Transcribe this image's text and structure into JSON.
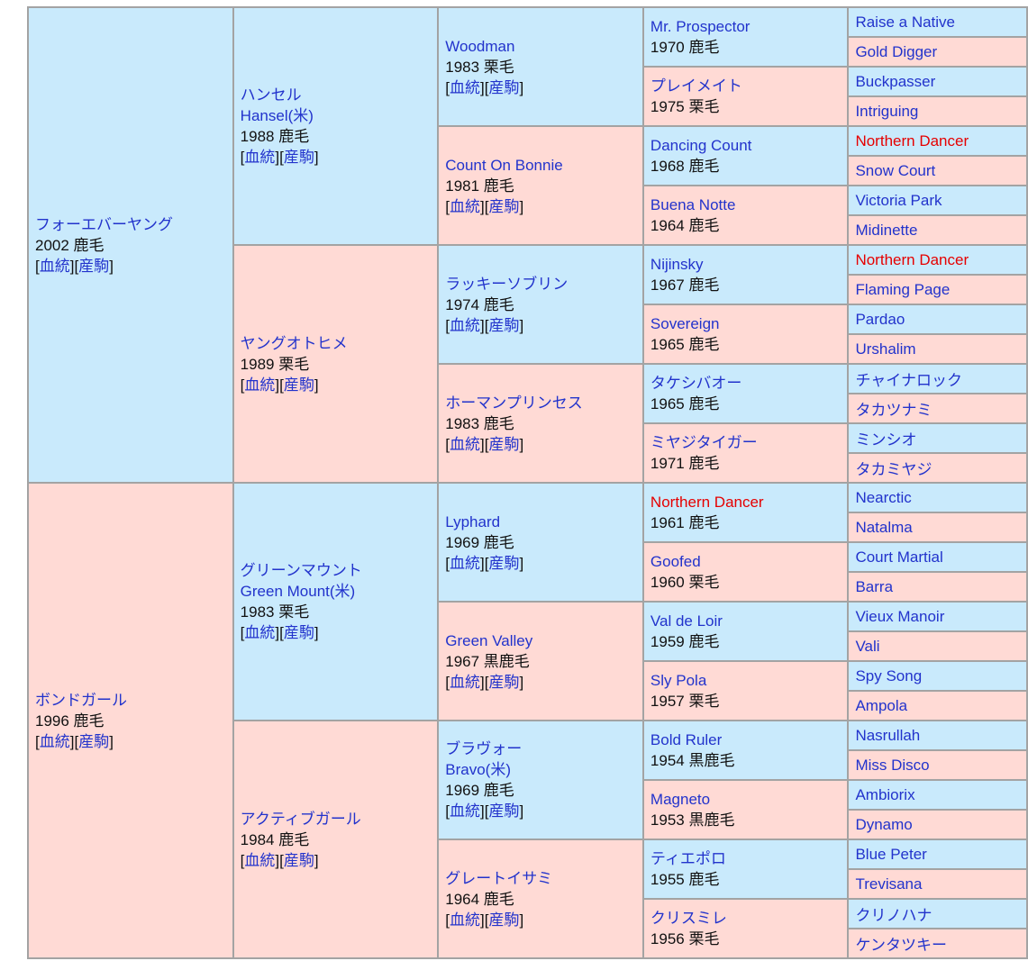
{
  "colors": {
    "male_bg": "#c9eafc",
    "female_bg": "#ffdad5",
    "link_blue": "#2233cc",
    "duplicate_red": "#e60000",
    "border_gray": "#a3a3a3",
    "text_black": "#111111"
  },
  "labels": {
    "blood": "血統",
    "offspring": "産駒",
    "open": "[",
    "mid": "][",
    "close": "]"
  },
  "g1": [
    {
      "name": "フォーエバーヤング",
      "info": "2002 鹿毛"
    },
    {
      "name": "ボンドガール",
      "info": "1996 鹿毛"
    }
  ],
  "g2": [
    {
      "name": "ハンセル",
      "name2": "Hansel(米)",
      "info": "1988 鹿毛"
    },
    {
      "name": "ヤングオトヒメ",
      "info": "1989 栗毛"
    },
    {
      "name": "グリーンマウント",
      "name2": "Green Mount(米)",
      "info": "1983 栗毛"
    },
    {
      "name": "アクティブガール",
      "info": "1984 鹿毛"
    }
  ],
  "g3": [
    {
      "name": "Woodman",
      "info": "1983 栗毛"
    },
    {
      "name": "Count On Bonnie",
      "info": "1981 鹿毛"
    },
    {
      "name": "ラッキーソブリン",
      "info": "1974 鹿毛"
    },
    {
      "name": "ホーマンプリンセス",
      "info": "1983 鹿毛"
    },
    {
      "name": "Lyphard",
      "info": "1969 鹿毛"
    },
    {
      "name": "Green Valley",
      "info": "1967 黒鹿毛"
    },
    {
      "name": "ブラヴォー",
      "name2": "Bravo(米)",
      "info": "1969 鹿毛"
    },
    {
      "name": "グレートイサミ",
      "info": "1964 鹿毛"
    }
  ],
  "g4": [
    {
      "name": "Mr. Prospector",
      "info": "1970 鹿毛"
    },
    {
      "name": "プレイメイト",
      "info": "1975 栗毛"
    },
    {
      "name": "Dancing Count",
      "info": "1968 鹿毛"
    },
    {
      "name": "Buena Notte",
      "info": "1964 鹿毛"
    },
    {
      "name": "Nijinsky",
      "info": "1967 鹿毛"
    },
    {
      "name": "Sovereign",
      "info": "1965 鹿毛"
    },
    {
      "name": "タケシバオー",
      "info": "1965 鹿毛"
    },
    {
      "name": "ミヤジタイガー",
      "info": "1971 鹿毛"
    },
    {
      "name": "Northern Dancer",
      "info": "1961 鹿毛"
    },
    {
      "name": "Goofed",
      "info": "1960 栗毛"
    },
    {
      "name": "Val de Loir",
      "info": "1959 鹿毛"
    },
    {
      "name": "Sly Pola",
      "info": "1957 栗毛"
    },
    {
      "name": "Bold Ruler",
      "info": "1954 黒鹿毛"
    },
    {
      "name": "Magneto",
      "info": "1953 黒鹿毛"
    },
    {
      "name": "ティエポロ",
      "info": "1955 鹿毛"
    },
    {
      "name": "クリスミレ",
      "info": "1956 栗毛"
    }
  ],
  "g5": [
    "Raise a Native",
    "Gold Digger",
    "Buckpasser",
    "Intriguing",
    "Northern Dancer",
    "Snow Court",
    "Victoria Park",
    "Midinette",
    "Northern Dancer",
    "Flaming Page",
    "Pardao",
    "Urshalim",
    "チャイナロック",
    "タカツナミ",
    "ミンシオ",
    "タカミヤジ",
    "Nearctic",
    "Natalma",
    "Court Martial",
    "Barra",
    "Vieux Manoir",
    "Vali",
    "Spy Song",
    "Ampola",
    "Nasrullah",
    "Miss Disco",
    "Ambiorix",
    "Dynamo",
    "Blue Peter",
    "Trevisana",
    "クリノハナ",
    "ケンタツキー"
  ]
}
